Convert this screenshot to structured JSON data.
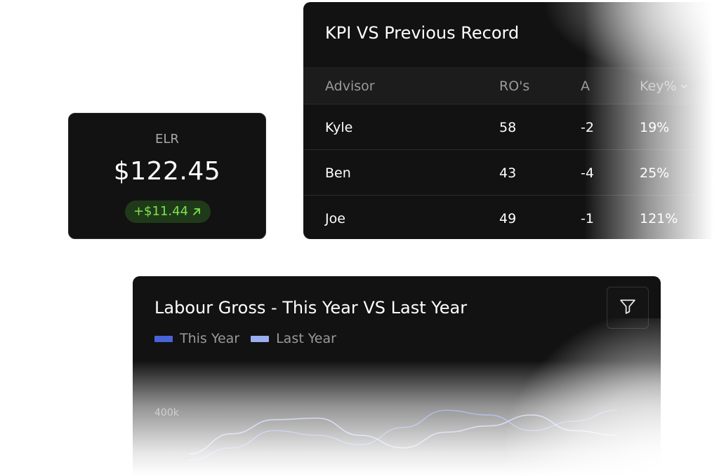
{
  "elr_card": {
    "label": "ELR",
    "value": "$122.45",
    "delta": "+$11.44",
    "delta_icon": "arrow-up-right-icon",
    "delta_color": "#7ee04f"
  },
  "kpi_table": {
    "title": "KPI VS Previous Record",
    "columns": [
      "Advisor",
      "RO's",
      "A",
      "Key%"
    ],
    "sort_icon": "chevron-down-icon",
    "rows": [
      {
        "advisor": "Kyle",
        "ros": "58",
        "a": "-2",
        "key": "19%"
      },
      {
        "advisor": "Ben",
        "ros": "43",
        "a": "-4",
        "key": "25%"
      },
      {
        "advisor": "Joe",
        "ros": "49",
        "a": "-1",
        "key": "121%"
      }
    ]
  },
  "labour_chart": {
    "title": "Labour Gross - This Year VS Last Year",
    "filter_icon": "filter-icon",
    "legend": [
      {
        "label": "This Year",
        "color": "#4a63d8"
      },
      {
        "label": "Last Year",
        "color": "#9aaef0"
      }
    ],
    "y_tick": "400k"
  },
  "chart_data": {
    "type": "line",
    "title": "Labour Gross - This Year VS Last Year",
    "xlabel": "",
    "ylabel": "",
    "y_ticks": [
      "400k"
    ],
    "grid": false,
    "legend_placement": "top-left",
    "x": [
      0,
      1,
      2,
      3,
      4,
      5,
      6,
      7,
      8,
      9,
      10
    ],
    "series": [
      {
        "name": "This Year",
        "color": "#4a63d8",
        "values": [
          250,
          290,
          345,
          330,
          300,
          355,
          410,
          395,
          345,
          375,
          410
        ]
      },
      {
        "name": "Last Year",
        "color": "#9aaef0",
        "values": [
          270,
          335,
          380,
          385,
          330,
          290,
          340,
          360,
          395,
          345,
          330
        ]
      }
    ],
    "ylim": [
      200,
      480
    ]
  }
}
